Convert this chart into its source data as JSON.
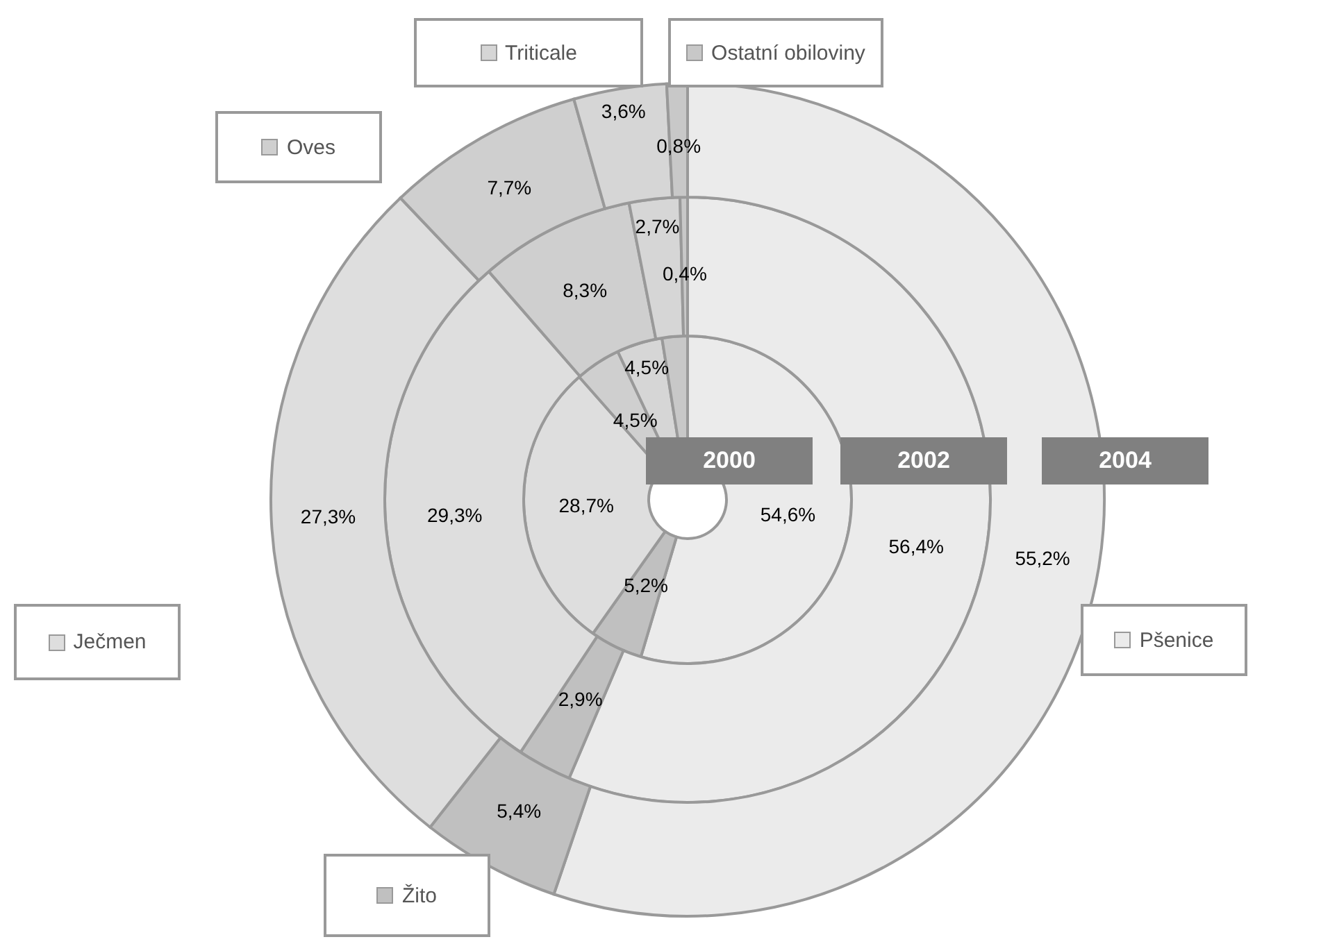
{
  "chart_data": {
    "type": "donut",
    "categories": [
      "Pšenice",
      "Žito",
      "Ječmen",
      "Oves",
      "Triticale",
      "Ostatní obiloviny"
    ],
    "colors": [
      "#ebebeb",
      "#c0c0c0",
      "#dedede",
      "#cfcfcf",
      "#d6d6d6",
      "#c8c8c8"
    ],
    "legend": "top left",
    "series": [
      {
        "name": "2000",
        "values": [
          54.6,
          5.2,
          28.7,
          4.5,
          4.5,
          2.5
        ],
        "value_labels": [
          "54,6%",
          "5,2%",
          "28,7%",
          "4,5%",
          "4,5%",
          null
        ]
      },
      {
        "name": "2002",
        "values": [
          56.4,
          2.9,
          29.3,
          8.3,
          2.7,
          0.4
        ],
        "value_labels": [
          "56,4%",
          "2,9%",
          "29,3%",
          "8,3%",
          "2,7%",
          "0,4%"
        ]
      },
      {
        "name": "2004",
        "values": [
          55.2,
          5.4,
          27.3,
          7.7,
          3.6,
          0.8
        ],
        "value_labels": [
          "55,2%",
          "5,4%",
          "27,3%",
          "7,7%",
          "3,6%",
          "0,8%"
        ]
      }
    ]
  }
}
